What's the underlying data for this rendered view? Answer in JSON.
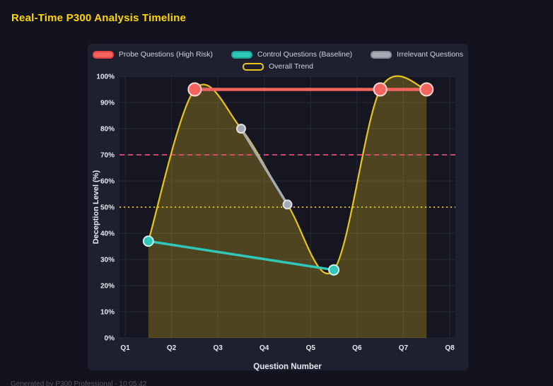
{
  "page": {
    "title": "Real-Time P300 Analysis Timeline",
    "footer": "Generated by P300 Professional - 10:05:42"
  },
  "chart_data": {
    "type": "line",
    "title": "Real-Time P300 Analysis Timeline",
    "xlabel": "Question Number",
    "ylabel": "Deception Level (%)",
    "xlim": [
      1,
      8
    ],
    "ylim": [
      0,
      100
    ],
    "grid": true,
    "legend_position": "top",
    "x_ticks": [
      {
        "value": 1,
        "label": "Q1"
      },
      {
        "value": 2,
        "label": "Q2"
      },
      {
        "value": 3,
        "label": "Q3"
      },
      {
        "value": 4,
        "label": "Q4"
      },
      {
        "value": 5,
        "label": "Q5"
      },
      {
        "value": 6,
        "label": "Q6"
      },
      {
        "value": 7,
        "label": "Q7"
      },
      {
        "value": 8,
        "label": "Q8"
      }
    ],
    "y_ticks": [
      {
        "value": 0,
        "label": "0%"
      },
      {
        "value": 10,
        "label": "10%"
      },
      {
        "value": 20,
        "label": "20%"
      },
      {
        "value": 30,
        "label": "30%"
      },
      {
        "value": 40,
        "label": "40%"
      },
      {
        "value": 50,
        "label": "50%"
      },
      {
        "value": 60,
        "label": "60%"
      },
      {
        "value": 70,
        "label": "70%"
      },
      {
        "value": 80,
        "label": "80%"
      },
      {
        "value": 90,
        "label": "90%"
      },
      {
        "value": 100,
        "label": "100%"
      }
    ],
    "series": [
      {
        "name": "Probe Questions (High Risk)",
        "color": "#f4635e",
        "legend_fill": "#f4635e",
        "legend_border": "#e04343",
        "x": [
          2.5,
          6.5,
          7.5
        ],
        "values": [
          95,
          95,
          95
        ],
        "line_width": 4.5,
        "point_radius": 9,
        "point_border": "#ffd8d4",
        "smooth": false,
        "fill": false
      },
      {
        "name": "Control Questions (Baseline)",
        "color": "#2fc7b8",
        "legend_fill": "#2fc7b8",
        "legend_border": "#1da193",
        "x": [
          1.5,
          5.5
        ],
        "values": [
          37,
          26
        ],
        "line_width": 3.5,
        "point_radius": 7,
        "point_border": "#cdf2ee",
        "smooth": false,
        "fill": false
      },
      {
        "name": "Irrelevant Questions",
        "color": "#a6aab3",
        "legend_fill": "#a6aab3",
        "legend_border": "#878c96",
        "x": [
          3.5,
          4.5
        ],
        "values": [
          80,
          51
        ],
        "line_width": 3.5,
        "point_radius": 6,
        "point_border": "#e0e2e6",
        "smooth": false,
        "fill": false
      },
      {
        "name": "Overall Trend",
        "color": "#e9c41d",
        "legend_fill": "transparent",
        "legend_border": "#e9c41d",
        "x": [
          1.5,
          2.5,
          3.5,
          4.5,
          5.5,
          6.5,
          7.5
        ],
        "values": [
          37,
          95,
          80,
          51,
          26,
          95,
          95
        ],
        "line_width": 2.2,
        "point_radius": 0,
        "point_border": "#e9c41d",
        "smooth": true,
        "fill": true,
        "fill_color": "rgba(233,196,29,0.27)"
      }
    ],
    "thresholds": [
      {
        "label": "high-risk-threshold",
        "value": 70,
        "color": "#ee4b6e",
        "style": "dashed"
      },
      {
        "label": "baseline-threshold",
        "value": 50,
        "color": "#e9c41d",
        "style": "dotted"
      }
    ]
  },
  "theme": {
    "page_bg": "#12131c",
    "card_bg": "#1e2030",
    "plot_bg": "#151621",
    "grid_color": "#262838",
    "title_color": "#ffd600",
    "tick_color": "#e7e8ee",
    "footer_color": "#565761"
  }
}
